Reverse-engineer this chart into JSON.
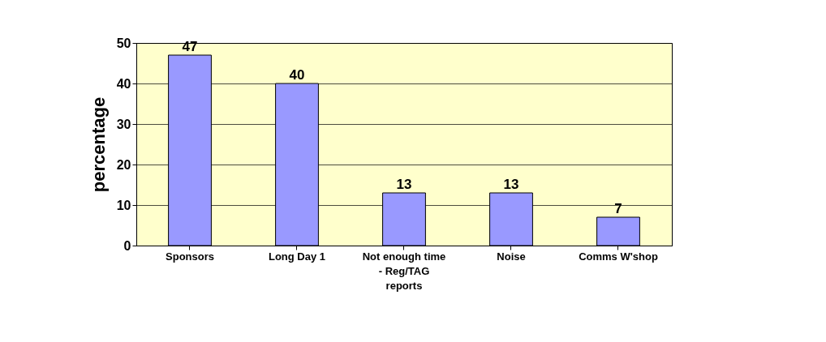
{
  "chart_data": {
    "type": "bar",
    "ylabel": "percentage",
    "categories": [
      "Sponsors",
      "Long Day 1",
      "Not enough time - Reg/TAG reports",
      "Noise",
      "Comms W'shop"
    ],
    "values": [
      47,
      40,
      13,
      13,
      7
    ],
    "color": "#9999ff",
    "ylim": [
      0,
      50
    ],
    "yticks": [
      0,
      10,
      20,
      30,
      40,
      50
    ],
    "grid": "y",
    "data_labels": true
  }
}
